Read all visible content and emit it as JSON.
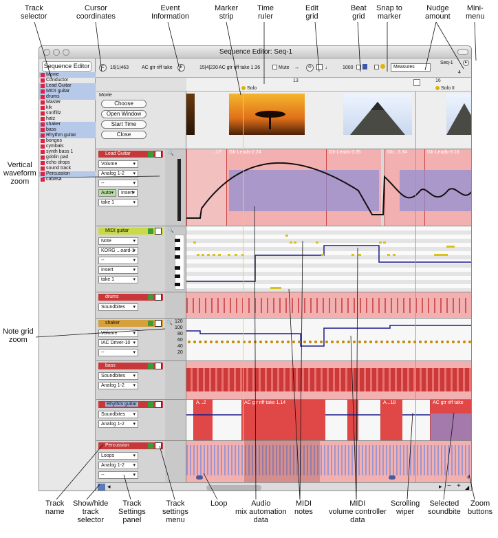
{
  "callouts": {
    "track_selector": "Track\nselector",
    "cursor_coordinates": "Cursor\ncoordinates",
    "event_information": "Event\nInformation",
    "marker_strip": "Marker\nstrip",
    "time_ruler": "Time\nruler",
    "edit_grid": "Edit\ngrid",
    "beat_grid": "Beat\ngrid",
    "snap_to_marker": "Snap to\nmarker",
    "nudge_amount": "Nudge\namount",
    "mini_menu": "Mini-\nmenu",
    "vertical_waveform_zoom": "Vertical\nwaveform\nzoom",
    "note_grid_zoom": "Note grid\nzoom",
    "track_name": "Track\nname",
    "show_hide_track_selector": "Show/hide\ntrack\nselector",
    "track_settings_panel": "Track\nSettings\npanel",
    "track_settings_menu": "Track\nsettings\nmenu",
    "loop": "Loop",
    "audio_mix_automation_data": "Audio\nmix automation\ndata",
    "midi_notes": "MIDI\nnotes",
    "midi_volume_controller_data": "MIDI\nvolume controller\ndata",
    "scrolling_wiper": "Scrolling\nwiper",
    "selected_soundbite": "Selected\nsoundbite",
    "zoom_buttons": "Zoom\nbuttons"
  },
  "window": {
    "title": "Sequence Editor: Seq-1"
  },
  "sidebar": {
    "tab_label": "Sequence Editor",
    "tracks": [
      "Movie",
      "Conductor",
      "Lead Guitar",
      "MIDI guitar",
      "drums",
      "Master",
      "kik",
      "snr/fillz",
      "hatz",
      "shaker",
      "bass",
      "Rhythm guitar",
      "bongos",
      "cymbals",
      "synth bass 1",
      "goblin pad",
      "echo drops",
      "sound track",
      "Percussion",
      "cabasa"
    ]
  },
  "infobar": {
    "cursor_button": "C",
    "cursor_value": "16|1|463",
    "event_name": "AC gtr riff take",
    "event_button": "E",
    "event_position": "15|4|230",
    "event_take": "AC gtr riff take 1.36",
    "mute_label": "Mute",
    "grid_button": "G",
    "grid_value": "1000",
    "nudge_select": "Measures",
    "sequence_menu": "Seq-1",
    "nudge_number": "4"
  },
  "ruler": {
    "ticks": [
      "13",
      "16"
    ],
    "markers": [
      "Solo",
      "Solo II"
    ]
  },
  "movie_track": {
    "label": "Movie",
    "buttons": [
      "Choose",
      "Open Window",
      "Start Time",
      "Close"
    ]
  },
  "lead_guitar": {
    "name": "Lead Guitar",
    "volume": "Volume",
    "output": "Analog 1-2",
    "blank": "--",
    "auto": "Auto",
    "mode": "Insert",
    "take": "take 1",
    "clips": [
      "...17",
      "Gtr Leads-2.24",
      "Gtr Leads-3.35",
      "Gtr...3.34",
      "Gtr Leads-3.16"
    ]
  },
  "midi_guitar": {
    "name": "MIDI guitar",
    "note": "Note",
    "device": "KORG ...oard-1",
    "blank": "--",
    "mode": "Insert",
    "take": "take 1"
  },
  "drums": {
    "name": "drums",
    "view": "Soundbites"
  },
  "shaker": {
    "name": "shaker",
    "volume": "Volume",
    "device": "IAC Driver-10",
    "blank": "--",
    "scale": [
      "120",
      "100",
      "80",
      "60",
      "40",
      "20"
    ]
  },
  "bass": {
    "name": "bass",
    "view": "Soundbites",
    "output": "Analog 1-2"
  },
  "rhythm_guitar": {
    "name": "Rhythm guitar",
    "view": "Soundbites",
    "output": "Analog 1-2",
    "clips": [
      "A...2",
      "AC gtr riff take 1.14",
      "A...18",
      "AC gtr riff take"
    ]
  },
  "percussion": {
    "name": "Percussion",
    "view": "Loops",
    "output": "Analog 1-2",
    "blank": "--"
  },
  "colors": {
    "audio_clip": "#f3b0b0",
    "waveform": "#8a8fd6",
    "midi_note": "#d8c21a",
    "automation": "#1a1a8a",
    "wiper": "#6ac24a"
  }
}
